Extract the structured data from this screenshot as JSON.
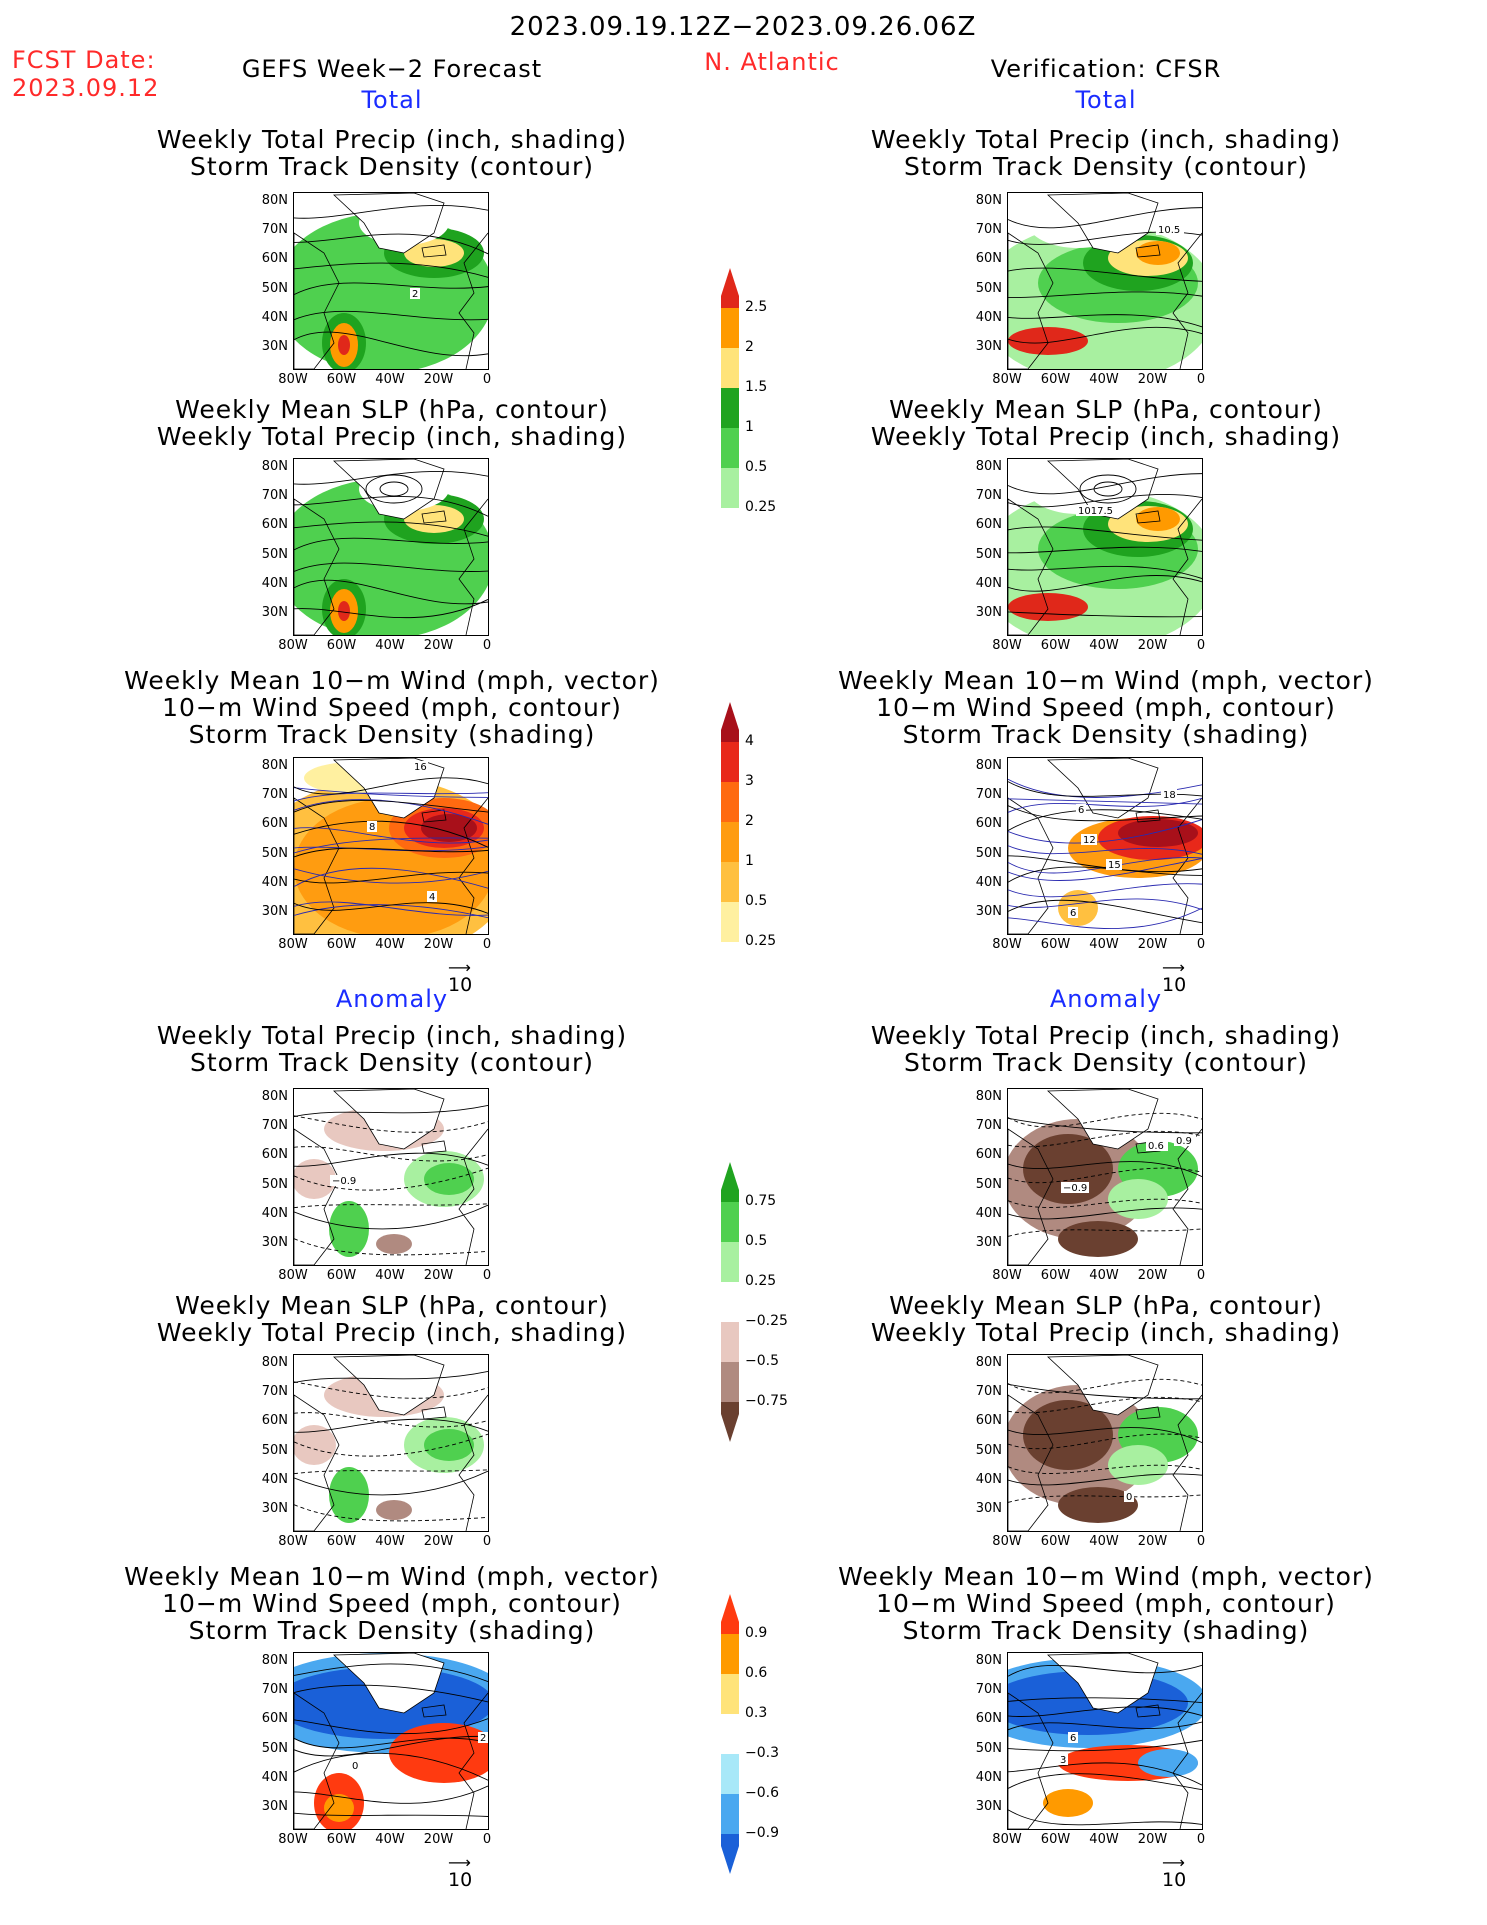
{
  "header": {
    "date_range": "2023.09.19.12Z−2023.09.26.06Z",
    "fcst_label": "FCST Date:",
    "fcst_date": "2023.09.12",
    "model": "GEFS Week−2 Forecast",
    "region": "N. Atlantic",
    "verification": "Verification: CFSR"
  },
  "sections": {
    "total": "Total",
    "anomaly": "Anomaly"
  },
  "titles": {
    "precip_storm": [
      "Weekly Total Precip (inch, shading)",
      "Storm Track Density (contour)"
    ],
    "slp_precip": [
      "Weekly Mean SLP (hPa, contour)",
      "Weekly Total Precip (inch, shading)"
    ],
    "wind_storm": [
      "Weekly Mean 10−m Wind (mph, vector)",
      "10−m Wind Speed (mph, contour)",
      "Storm Track Density (shading)"
    ]
  },
  "axes": {
    "lat": [
      "80N",
      "70N",
      "60N",
      "50N",
      "40N",
      "30N"
    ],
    "lon": [
      "80W",
      "60W",
      "40W",
      "20W",
      "0"
    ]
  },
  "vector_ref": "10",
  "colorbars": {
    "precip_total": {
      "labels": [
        "2.5",
        "2",
        "1.5",
        "1",
        "0.5",
        "0.25"
      ],
      "colors": [
        "#e0281a",
        "#ff9a00",
        "#ffe37a",
        "#1fa31f",
        "#4fd04f",
        "#a8f0a0"
      ]
    },
    "storm_total": {
      "labels": [
        "4",
        "3",
        "2",
        "1",
        "0.5",
        "0.25"
      ],
      "colors": [
        "#a8101a",
        "#e8281a",
        "#ff6a10",
        "#ff9c10",
        "#ffc040",
        "#fff0a0"
      ]
    },
    "precip_anom": {
      "labels": [
        "0.75",
        "0.5",
        "0.25",
        "−0.25",
        "−0.5",
        "−0.75"
      ],
      "colors": [
        "#1fa31f",
        "#4fd04f",
        "#a8f0a0",
        "#ffffff",
        "#e8c8c0",
        "#b08a80",
        "#6a4030"
      ]
    },
    "storm_anom": {
      "labels": [
        "0.9",
        "0.6",
        "0.3",
        "−0.3",
        "−0.6",
        "−0.9"
      ],
      "colors": [
        "#ff3a10",
        "#ff9a00",
        "#ffe37a",
        "#ffffff",
        "#a8e8f8",
        "#4aa8f0",
        "#1a60d8"
      ]
    }
  },
  "contour_labels": {
    "fc_precip_total": "2",
    "vf_precip_total": "10.5",
    "vf_slp_total": "1017.5",
    "fc_wind_total": [
      "16",
      "8",
      "4"
    ],
    "vf_wind_total": [
      "6",
      "12",
      "15",
      "18",
      "6"
    ],
    "fc_precip_anom": "−0.9",
    "vf_precip_anom": [
      "0.6",
      "0.9",
      "−0.9"
    ],
    "fc_wind_anom": [
      "2",
      "0"
    ],
    "vf_wind_anom": [
      "6",
      "3"
    ],
    "vf_slp_anom": "0"
  }
}
